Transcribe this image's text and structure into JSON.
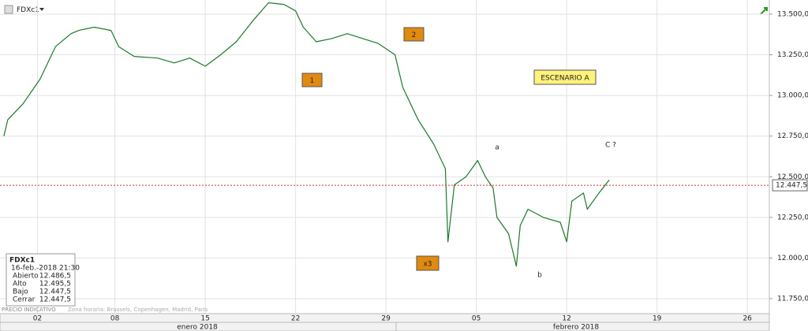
{
  "chart_data": {
    "type": "line",
    "x": [
      -0.6,
      -0.3,
      0.9,
      2.2,
      3.4,
      4.6,
      5.2,
      6.4,
      7.7,
      8.3,
      9.5,
      11.3,
      12.6,
      13.8,
      15.0,
      16.2,
      17.4,
      18.7,
      19.9,
      21.1,
      22.0,
      22.6,
      23.6,
      24.8,
      26.0,
      27.2,
      28.4,
      29.7,
      30.3,
      31.5,
      32.7,
      33.6,
      33.8,
      34.3,
      35.2,
      36.1,
      36.7,
      37.3,
      37.6,
      38.5,
      39.1,
      39.4,
      40.0,
      41.2,
      42.5,
      43.0,
      43.4,
      44.3,
      44.6,
      45.5,
      46.3
    ],
    "series": [
      {
        "name": "FDXc1",
        "color": "#1a7a2a",
        "values": [
          12750,
          12850,
          12950,
          13100,
          13300,
          13380,
          13400,
          13420,
          13400,
          13300,
          13240,
          13230,
          13200,
          13230,
          13180,
          13250,
          13330,
          13460,
          13570,
          13560,
          13520,
          13420,
          13330,
          13350,
          13380,
          13350,
          13320,
          13250,
          13050,
          12850,
          12700,
          12550,
          12100,
          12450,
          12500,
          12600,
          12500,
          12430,
          12250,
          12150,
          11950,
          12200,
          12300,
          12250,
          12220,
          12100,
          12350,
          12400,
          12300,
          12400,
          12480
        ]
      }
    ],
    "xlim": [
      -0.9,
      58.7
    ],
    "xticks": [
      {
        "value": 2,
        "label": "02"
      },
      {
        "value": 8,
        "label": "08"
      },
      15,
      22,
      29,
      {
        "value": 36,
        "label": "05"
      },
      {
        "value": 43,
        "label": "12"
      },
      {
        "value": 50,
        "label": "19"
      },
      {
        "value": 57,
        "label": "26"
      }
    ],
    "x_group_labels": [
      "enero 2018",
      "febrero 2018"
    ],
    "ylim": [
      11658,
      13587
    ],
    "yticks": [
      {
        "value": 11750,
        "label": "11.750,0"
      },
      {
        "value": 12000,
        "label": "12.000,0"
      },
      {
        "value": 12250,
        "label": "12.250,0"
      },
      {
        "value": 12500,
        "label": "12.500,0"
      },
      {
        "value": 12750,
        "label": "12.750,0"
      },
      {
        "value": 13000,
        "label": "13.000,0"
      },
      {
        "value": 13250,
        "label": "13.250,0"
      },
      {
        "value": 13500,
        "label": "13.500,0"
      }
    ],
    "grid": true,
    "last_value": 12447.5,
    "last_value_label": "12.447,5",
    "last_value_color": "#d03030",
    "annotations": [
      "1",
      "2",
      "x3",
      "ESCENARIO A",
      "a",
      "b",
      "C ?"
    ],
    "info": {
      "datetime": "16-feb.-2018 21:30",
      "rows": [
        [
          "Abierto",
          "12.486,5"
        ],
        [
          "Alto",
          "12.495,5"
        ],
        [
          "Bajo",
          "12.447,5"
        ],
        [
          "Cerrar",
          "12.447,5"
        ]
      ]
    },
    "footer": [
      "PRECIO INDICATIVO",
      "Zona horaria: Brussels, Copenhagen, Madrid, Paris"
    ]
  }
}
